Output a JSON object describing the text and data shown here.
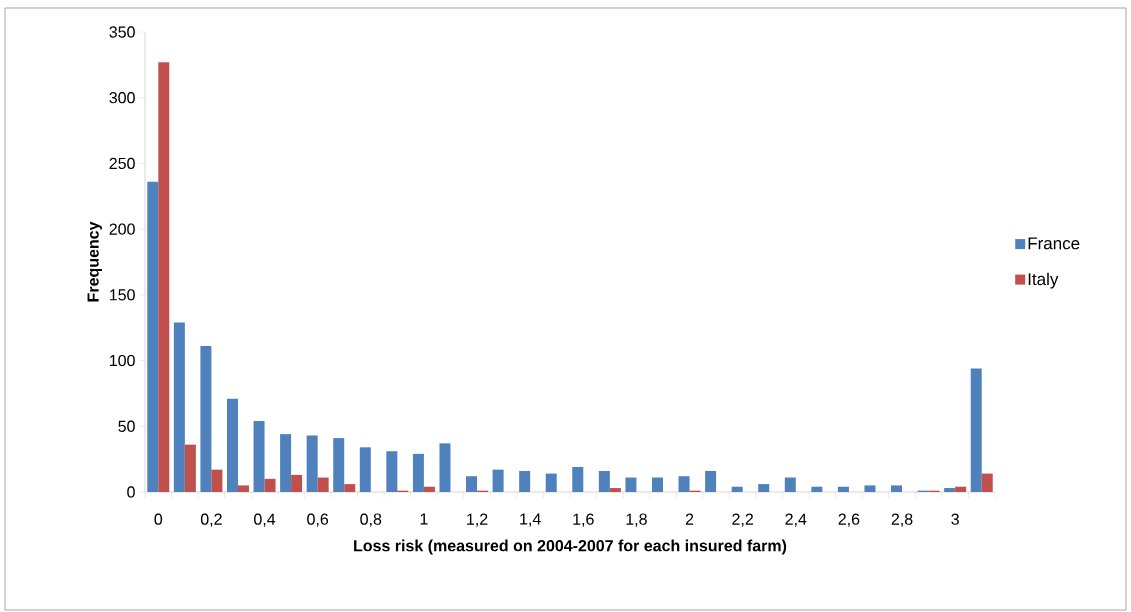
{
  "chart_data": {
    "type": "bar",
    "xlabel": "Loss risk (measured on 2004-2007 for each insured farm)",
    "ylabel": "Frequency",
    "categories": [
      "0",
      null,
      "0,2",
      null,
      "0,4",
      null,
      "0,6",
      null,
      "0,8",
      null,
      "1",
      null,
      "1,2",
      null,
      "1,4",
      null,
      "1,6",
      null,
      "1,8",
      null,
      "2",
      null,
      "2,2",
      null,
      "2,4",
      null,
      "2,6",
      null,
      "2,8",
      null,
      "3",
      null
    ],
    "series": [
      {
        "name": "France",
        "color": "#4f81bd",
        "values": [
          236,
          129,
          111,
          71,
          54,
          44,
          43,
          41,
          34,
          31,
          29,
          37,
          12,
          17,
          16,
          14,
          19,
          16,
          11,
          11,
          12,
          16,
          4,
          6,
          11,
          4,
          4,
          5,
          5,
          1,
          3,
          94
        ]
      },
      {
        "name": "Italy",
        "color": "#c0504d",
        "values": [
          327,
          36,
          17,
          5,
          10,
          13,
          11,
          6,
          0,
          1,
          4,
          0,
          1,
          0,
          0,
          0,
          0,
          3,
          0,
          0,
          1,
          0,
          0,
          0,
          0,
          0,
          0,
          0,
          0,
          1,
          4,
          14
        ]
      }
    ],
    "ylim": [
      0,
      350
    ],
    "yticks": [
      0,
      50,
      100,
      150,
      200,
      250,
      300,
      350
    ],
    "legend": "right",
    "grid": false
  }
}
